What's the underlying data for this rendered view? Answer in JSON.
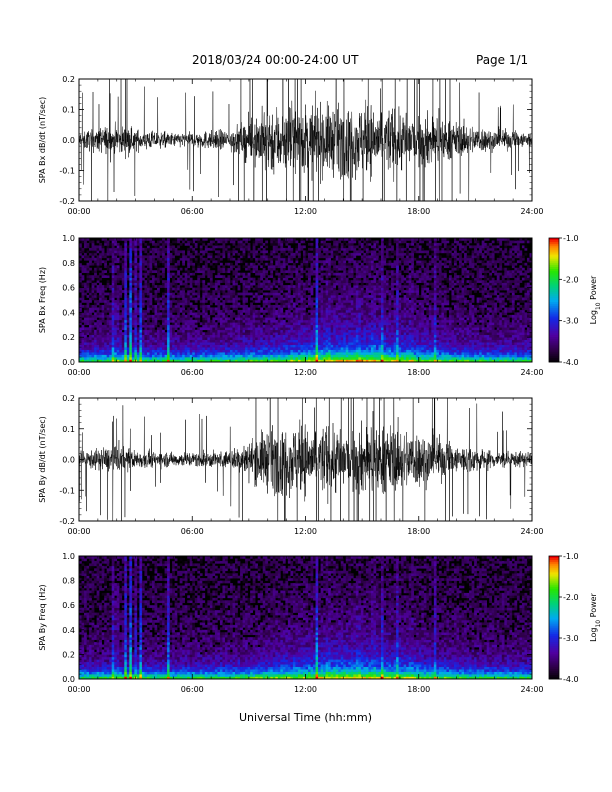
{
  "header": {
    "title": "2018/03/24  00:00-24:00 UT",
    "page": "Page 1/1"
  },
  "xaxis": {
    "label": "Universal Time (hh:mm)",
    "ticks": [
      "00:00",
      "06:00",
      "12:00",
      "18:00",
      "24:00"
    ],
    "range_hours": [
      0,
      24
    ]
  },
  "chart_data": [
    {
      "type": "line",
      "ylabel": "SPA Bx dB/dt (nT/sec)",
      "ylim": [
        -0.2,
        0.2
      ],
      "yticks": [
        "0.2",
        "0.1",
        "0.0",
        "-0.1",
        "-0.2"
      ],
      "envelope": {
        "x_hours": [
          0,
          2,
          3,
          5,
          8,
          9,
          10,
          12,
          14,
          16,
          18,
          20,
          22,
          24
        ],
        "amplitude": [
          0.05,
          0.09,
          0.06,
          0.04,
          0.06,
          0.12,
          0.2,
          0.2,
          0.2,
          0.2,
          0.17,
          0.1,
          0.06,
          0.05
        ]
      }
    },
    {
      "type": "heatmap",
      "ylabel": "SPA Bx Freq (Hz)",
      "ylim": [
        0.0,
        1.0
      ],
      "yticks": [
        "1.0",
        "0.8",
        "0.6",
        "0.4",
        "0.2",
        "0.0"
      ],
      "colorbar": {
        "label": "Log10 Power",
        "range": [
          -4.0,
          -1.0
        ],
        "ticks": [
          "-1.0",
          "-2.0",
          "-3.0",
          "-4.0"
        ]
      }
    },
    {
      "type": "line",
      "ylabel": "SPA By dB/dt (nT/sec)",
      "ylim": [
        -0.2,
        0.2
      ],
      "yticks": [
        "0.2",
        "0.1",
        "0.0",
        "-0.1",
        "-0.2"
      ],
      "envelope": {
        "x_hours": [
          0,
          2,
          3,
          5,
          8,
          9,
          10,
          12,
          14,
          16,
          18,
          20,
          22,
          24
        ],
        "amplitude": [
          0.04,
          0.08,
          0.05,
          0.04,
          0.05,
          0.1,
          0.18,
          0.2,
          0.2,
          0.2,
          0.16,
          0.09,
          0.05,
          0.04
        ]
      }
    },
    {
      "type": "heatmap",
      "ylabel": "SPA By Freq (Hz)",
      "ylim": [
        0.0,
        1.0
      ],
      "yticks": [
        "1.0",
        "0.8",
        "0.6",
        "0.4",
        "0.2",
        "0.0"
      ],
      "colorbar": {
        "label": "Log10 Power",
        "range": [
          -4.0,
          -1.0
        ],
        "ticks": [
          "-1.0",
          "-2.0",
          "-3.0",
          "-4.0"
        ]
      }
    }
  ]
}
